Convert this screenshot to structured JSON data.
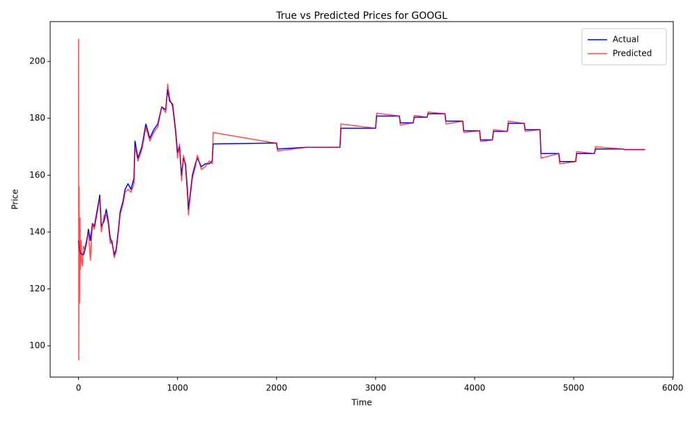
{
  "chart_data": {
    "type": "line",
    "title": "True vs Predicted Prices for GOOGL",
    "x_label": "Time",
    "y_label": "Price",
    "x": [
      0,
      3,
      6,
      10,
      15,
      20,
      25,
      30,
      40,
      50,
      60,
      80,
      100,
      120,
      140,
      160,
      180,
      200,
      215,
      230,
      260,
      280,
      300,
      320,
      340,
      360,
      380,
      400,
      420,
      450,
      470,
      500,
      530,
      560,
      570,
      600,
      640,
      680,
      720,
      760,
      800,
      840,
      880,
      900,
      920,
      950,
      980,
      1000,
      1020,
      1040,
      1060,
      1080,
      1100,
      1110,
      1120,
      1150,
      1180,
      1200,
      1240,
      1280,
      1320,
      1350,
      1360,
      2000,
      2010,
      2300,
      2640,
      2650,
      3000,
      3010,
      3240,
      3250,
      3380,
      3390,
      3520,
      3530,
      3700,
      3710,
      3880,
      3890,
      4050,
      4060,
      4180,
      4190,
      4330,
      4340,
      4500,
      4510,
      4660,
      4670,
      4850,
      4860,
      5020,
      5030,
      5210,
      5220,
      5500,
      5510,
      5720
    ],
    "series": [
      {
        "name": "Actual",
        "color": "#0000ff",
        "opacity": 1,
        "values": [
          137,
          136,
          135,
          134,
          133,
          132.5,
          132.5,
          132.5,
          132,
          132,
          133,
          136,
          141,
          137,
          143,
          142,
          146,
          150,
          153,
          142,
          144,
          148,
          144,
          138,
          136,
          132,
          134,
          140,
          147,
          151,
          155,
          157,
          155,
          159,
          172,
          166,
          170,
          178,
          173,
          176,
          178,
          184,
          183,
          190,
          186,
          185,
          176,
          168,
          170,
          160,
          166,
          164,
          155,
          148,
          151,
          160,
          164,
          166,
          163,
          164,
          164,
          165,
          171,
          171.3,
          169.2,
          169.8,
          169.8,
          176.5,
          176.5,
          180.8,
          180.8,
          178.4,
          178.4,
          180.4,
          180.4,
          181.6,
          181.6,
          179,
          179,
          175.6,
          175.6,
          172.4,
          172.4,
          175.4,
          175.4,
          178.2,
          178.2,
          176,
          176,
          167.6,
          167.6,
          164.8,
          164.8,
          167.6,
          167.6,
          169.2,
          169.2,
          169,
          169
        ]
      },
      {
        "name": "Predicted",
        "color": "#ff0000",
        "opacity": 0.7,
        "values": [
          208,
          95,
          156,
          115,
          145,
          127,
          137,
          130,
          128,
          135,
          134,
          137,
          140,
          130,
          143,
          141,
          145,
          149,
          152,
          140,
          146,
          146,
          143,
          136,
          137,
          131,
          133,
          139,
          146,
          150,
          154,
          155,
          154,
          157,
          170,
          165,
          169,
          177,
          172,
          175,
          177,
          184,
          182,
          192,
          187,
          184,
          175,
          166,
          171,
          158,
          167,
          163,
          153,
          146,
          150,
          159,
          163,
          167,
          162,
          163,
          165,
          164,
          175,
          171.2,
          168.5,
          169.8,
          169.8,
          178,
          176.5,
          181.8,
          180.8,
          177.6,
          178.4,
          181,
          180.4,
          182.2,
          181.6,
          178,
          179,
          175,
          175.6,
          171.8,
          172.4,
          176,
          175.4,
          179,
          178.2,
          175.4,
          176,
          166,
          167.6,
          164,
          164.8,
          168.3,
          167.6,
          170,
          169.2,
          169,
          169
        ]
      }
    ],
    "xlim": [
      -286,
      6006
    ],
    "xticks": [
      0,
      1000,
      2000,
      3000,
      4000,
      5000,
      6000
    ],
    "ylim": [
      89,
      214
    ],
    "yticks": [
      100,
      120,
      140,
      160,
      180,
      200
    ],
    "grid": false,
    "legend": "upper right"
  }
}
